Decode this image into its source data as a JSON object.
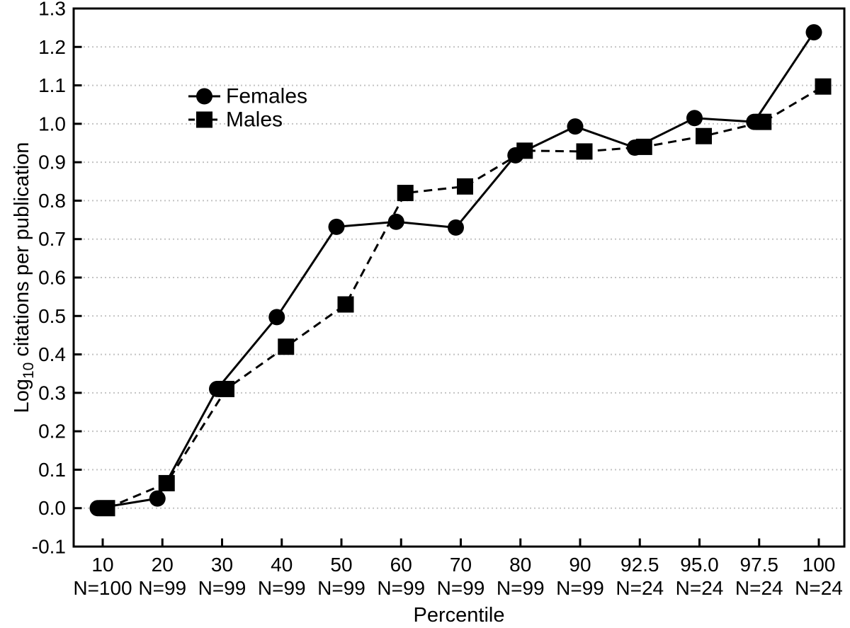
{
  "figure": {
    "description": "Line chart of log10 citations per publication by percentile, comparing females and males"
  },
  "chart_data": {
    "type": "line",
    "title": "",
    "xlabel": "Percentile",
    "ylabel": "Log10 citations per publication",
    "ylabel_parts": {
      "prefix": "Log",
      "subscript": "10",
      "suffix": " citations per publication"
    },
    "categories": [
      "10",
      "20",
      "30",
      "40",
      "50",
      "60",
      "70",
      "80",
      "90",
      "92.5",
      "95.0",
      "97.5",
      "100"
    ],
    "n_labels": [
      "N=100",
      "N=99",
      "N=99",
      "N=99",
      "N=99",
      "N=99",
      "N=99",
      "N=99",
      "N=99",
      "N=24",
      "N=24",
      "N=24",
      "N=24"
    ],
    "ylim": [
      -0.1,
      1.3
    ],
    "ytick_step": 0.1,
    "grid": {
      "horizontal_dotted": true,
      "range": [
        0.0,
        1.2
      ]
    },
    "legend_position": "upper-left-inside",
    "series": [
      {
        "name": "Females",
        "marker": "circle",
        "line_style": "solid",
        "color": "#000000",
        "values": [
          0.0,
          0.025,
          0.31,
          0.497,
          0.732,
          0.745,
          0.73,
          0.918,
          0.993,
          0.938,
          1.015,
          1.005,
          1.238
        ]
      },
      {
        "name": "Males",
        "marker": "square",
        "line_style": "dashed",
        "color": "#000000",
        "values": [
          0.0,
          0.065,
          0.31,
          0.42,
          0.53,
          0.82,
          0.837,
          0.93,
          0.928,
          0.94,
          0.968,
          1.005,
          1.097
        ]
      }
    ]
  },
  "colors": {
    "background": "#ffffff",
    "axis": "#000000",
    "grid": "#c3c3c3",
    "text": "#000000"
  }
}
